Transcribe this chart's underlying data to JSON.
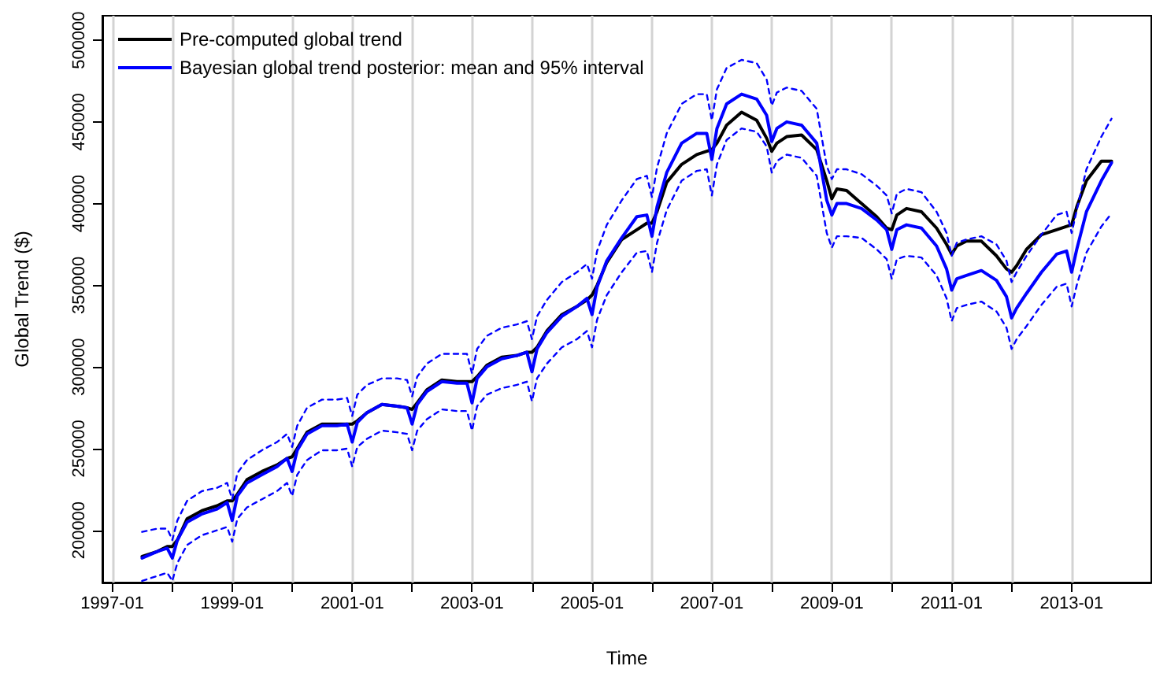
{
  "chart_data": {
    "type": "line",
    "xlabel": "Time",
    "ylabel": "Global Trend ($)",
    "x": [
      "1997-07",
      "1997-10",
      "1997-12",
      "1998-01",
      "1998-02",
      "1998-04",
      "1998-07",
      "1998-10",
      "1998-12",
      "1999-01",
      "1999-02",
      "1999-04",
      "1999-07",
      "1999-10",
      "1999-12",
      "2000-01",
      "2000-02",
      "2000-04",
      "2000-07",
      "2000-10",
      "2000-12",
      "2001-01",
      "2001-02",
      "2001-04",
      "2001-07",
      "2001-10",
      "2001-12",
      "2002-01",
      "2002-02",
      "2002-04",
      "2002-07",
      "2002-10",
      "2002-12",
      "2003-01",
      "2003-02",
      "2003-04",
      "2003-07",
      "2003-10",
      "2003-12",
      "2004-01",
      "2004-02",
      "2004-04",
      "2004-07",
      "2004-10",
      "2004-12",
      "2005-01",
      "2005-02",
      "2005-04",
      "2005-07",
      "2005-10",
      "2005-12",
      "2006-01",
      "2006-02",
      "2006-04",
      "2006-07",
      "2006-10",
      "2006-12",
      "2007-01",
      "2007-02",
      "2007-04",
      "2007-07",
      "2007-10",
      "2007-12",
      "2008-01",
      "2008-02",
      "2008-04",
      "2008-07",
      "2008-10",
      "2008-12",
      "2009-01",
      "2009-02",
      "2009-04",
      "2009-07",
      "2009-10",
      "2009-12",
      "2010-01",
      "2010-02",
      "2010-04",
      "2010-07",
      "2010-10",
      "2010-12",
      "2011-01",
      "2011-02",
      "2011-04",
      "2011-07",
      "2011-10",
      "2011-12",
      "2012-01",
      "2012-02",
      "2012-04",
      "2012-07",
      "2012-10",
      "2012-12",
      "2013-01",
      "2013-02",
      "2013-04",
      "2013-07",
      "2013-09"
    ],
    "series": [
      {
        "name": "Pre-computed global trend",
        "color": "#000000",
        "values": [
          184000,
          187000,
          190000,
          190000,
          194000,
          207000,
          212000,
          215000,
          218000,
          218000,
          222000,
          231000,
          236000,
          240000,
          244000,
          245000,
          250000,
          260000,
          265000,
          265000,
          265000,
          265000,
          267000,
          272000,
          277000,
          276000,
          275000,
          274000,
          278000,
          286000,
          292000,
          291000,
          291000,
          291000,
          294000,
          301000,
          306000,
          307000,
          309000,
          309000,
          312000,
          322000,
          332000,
          337000,
          341000,
          344000,
          350000,
          364000,
          378000,
          384000,
          388000,
          388000,
          395000,
          413000,
          424000,
          430000,
          432000,
          433000,
          437000,
          448000,
          456000,
          451000,
          440000,
          432000,
          437000,
          441000,
          442000,
          433000,
          414000,
          403000,
          409000,
          408000,
          400000,
          392000,
          385000,
          384000,
          393000,
          397000,
          395000,
          385000,
          375000,
          369000,
          374000,
          377000,
          377000,
          368000,
          360000,
          358000,
          362000,
          372000,
          381000,
          384000,
          386000,
          387000,
          398000,
          414000,
          426000,
          426000
        ]
      },
      {
        "name": "Bayesian global trend posterior: mean and 95% interval",
        "color": "#0000ff",
        "values": [
          183000,
          187000,
          189000,
          183000,
          194000,
          205000,
          210000,
          213000,
          217000,
          206000,
          221000,
          229000,
          234000,
          239000,
          244000,
          236000,
          249000,
          259000,
          264000,
          264000,
          265000,
          254000,
          266000,
          272000,
          277000,
          276000,
          275000,
          265000,
          277000,
          285000,
          291000,
          290000,
          290000,
          278000,
          293000,
          300000,
          305000,
          307000,
          309000,
          297000,
          311000,
          321000,
          331000,
          337000,
          342000,
          332000,
          349000,
          365000,
          379000,
          392000,
          393000,
          380000,
          398000,
          419000,
          437000,
          443000,
          443000,
          427000,
          446000,
          461000,
          467000,
          464000,
          454000,
          438000,
          446000,
          450000,
          448000,
          437000,
          402000,
          393000,
          400000,
          400000,
          397000,
          390000,
          384000,
          372000,
          384000,
          387000,
          385000,
          374000,
          360000,
          347000,
          354000,
          356000,
          359000,
          353000,
          343000,
          330000,
          336000,
          345000,
          358000,
          369000,
          371000,
          358000,
          372000,
          395000,
          414000,
          425000
        ]
      },
      {
        "color": "#0000ff",
        "line_style": "dashed",
        "values": [
          199000,
          201000,
          201000,
          194000,
          206000,
          218000,
          224000,
          226000,
          229000,
          219000,
          235000,
          243000,
          249000,
          254000,
          259000,
          251000,
          264000,
          275000,
          280000,
          280000,
          281000,
          270000,
          283000,
          289000,
          293000,
          293000,
          292000,
          282000,
          294000,
          302000,
          308000,
          308000,
          308000,
          296000,
          311000,
          319000,
          324000,
          326000,
          328000,
          317000,
          331000,
          341000,
          352000,
          358000,
          363000,
          354000,
          371000,
          387000,
          402000,
          415000,
          417000,
          404000,
          422000,
          443000,
          461000,
          467000,
          467000,
          451000,
          470000,
          483000,
          488000,
          486000,
          476000,
          460000,
          468000,
          471000,
          469000,
          458000,
          423000,
          415000,
          421000,
          421000,
          418000,
          411000,
          405000,
          394000,
          406000,
          409000,
          407000,
          395000,
          382000,
          368000,
          376000,
          378000,
          380000,
          375000,
          365000,
          352000,
          358000,
          368000,
          381000,
          393000,
          395000,
          382000,
          396000,
          421000,
          441000,
          452000
        ]
      },
      {
        "color": "#0000ff",
        "line_style": "dashed",
        "values": [
          169000,
          172000,
          174000,
          169000,
          180000,
          191000,
          197000,
          200000,
          202000,
          193000,
          207000,
          214000,
          219000,
          224000,
          229000,
          221000,
          234000,
          243000,
          249000,
          249000,
          250000,
          239000,
          251000,
          256000,
          261000,
          260000,
          259000,
          249000,
          261000,
          268000,
          274000,
          273000,
          273000,
          261000,
          276000,
          283000,
          287000,
          289000,
          291000,
          279000,
          293000,
          302000,
          312000,
          317000,
          322000,
          312000,
          329000,
          344000,
          358000,
          370000,
          371000,
          358000,
          376000,
          396000,
          414000,
          420000,
          421000,
          405000,
          424000,
          439000,
          446000,
          444000,
          435000,
          419000,
          426000,
          430000,
          428000,
          417000,
          382000,
          373000,
          380000,
          380000,
          379000,
          372000,
          366000,
          354000,
          366000,
          368000,
          367000,
          356000,
          342000,
          328000,
          336000,
          338000,
          340000,
          334000,
          324000,
          311000,
          317000,
          325000,
          338000,
          349000,
          351000,
          337000,
          350000,
          370000,
          386000,
          394000
        ]
      }
    ],
    "xlim": [
      "1996-11",
      "2014-05"
    ],
    "xticks": [
      "1997-01",
      {
        "value": "1998-01",
        "label": null
      },
      "1999-01",
      {
        "value": "2000-01",
        "label": null
      },
      "2001-01",
      {
        "value": "2002-01",
        "label": null
      },
      "2003-01",
      {
        "value": "2004-01",
        "label": null
      },
      "2005-01",
      {
        "value": "2006-01",
        "label": null
      },
      "2007-01",
      {
        "value": "2008-01",
        "label": null
      },
      "2009-01",
      {
        "value": "2010-01",
        "label": null
      },
      "2011-01",
      {
        "value": "2012-01",
        "label": null
      },
      "2013-01"
    ],
    "ylim": [
      168000,
      515000
    ],
    "yticks": [
      200000,
      250000,
      300000,
      350000,
      400000,
      450000,
      500000
    ],
    "grid": "x",
    "legend": "top left",
    "marker": "none",
    "line_style": "solid"
  }
}
